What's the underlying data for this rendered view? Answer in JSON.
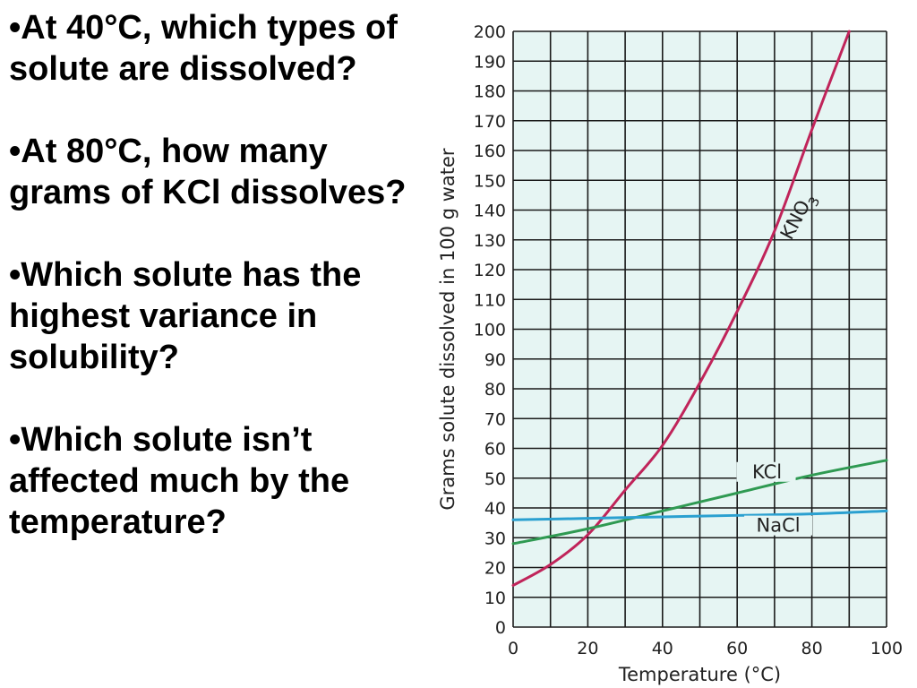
{
  "questions": [
    "•At 40°C, which types of solute are dissolved?",
    "•At 80°C, how many grams of KCl dissolves?",
    "•Which solute has the highest variance in solubility?",
    "•Which solute isn’t affected much by the temperature?"
  ],
  "chart_data": {
    "type": "line",
    "title": "",
    "xlabel": "Temperature (°C)",
    "ylabel": "Grams solute dissolved in 100 g water",
    "xlim": [
      0,
      100
    ],
    "ylim": [
      0,
      200
    ],
    "x_ticks": [
      "0",
      "20",
      "40",
      "60",
      "80",
      "100"
    ],
    "y_ticks": [
      "0",
      "10",
      "20",
      "30",
      "40",
      "50",
      "60",
      "70",
      "80",
      "90",
      "100",
      "110",
      "120",
      "130",
      "140",
      "150",
      "160",
      "170",
      "180",
      "190",
      "200"
    ],
    "grid": true,
    "background_color": "#e6f5f3",
    "series": [
      {
        "name": "KNO",
        "name_subscript": "3",
        "color": "#c0245a",
        "x": [
          0,
          10,
          20,
          30,
          40,
          50,
          60,
          70,
          80,
          90
        ],
        "y": [
          14,
          21,
          31,
          46,
          61,
          82,
          106,
          133,
          167,
          200
        ]
      },
      {
        "name": "KCl",
        "color": "#2f9a52",
        "x": [
          0,
          20,
          40,
          60,
          80,
          100
        ],
        "y": [
          28,
          33,
          39,
          45,
          51,
          56
        ]
      },
      {
        "name": "NaCl",
        "color": "#2aa0d0",
        "x": [
          0,
          20,
          40,
          60,
          80,
          100
        ],
        "y": [
          36,
          36.5,
          37,
          37.5,
          38,
          39
        ]
      }
    ]
  }
}
